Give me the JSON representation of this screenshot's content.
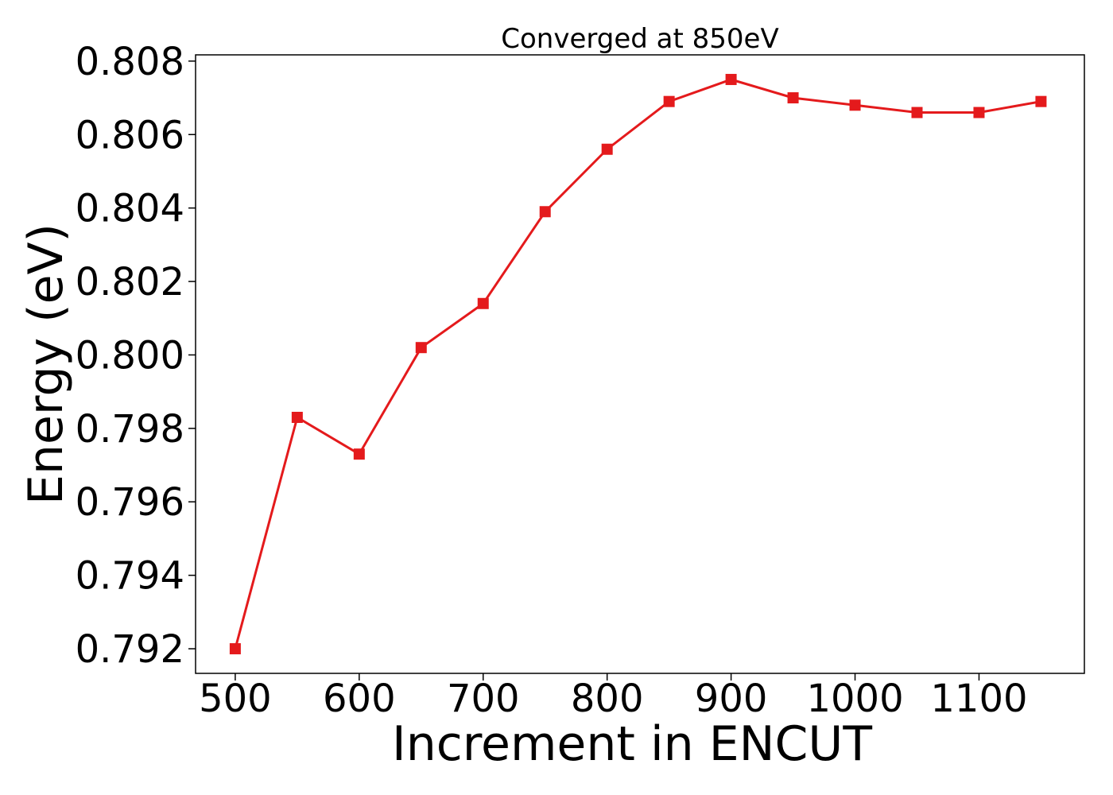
{
  "chart_data": {
    "type": "line",
    "title": "Converged at 850eV",
    "xlabel": "Increment in ENCUT",
    "ylabel": "Energy (eV)",
    "x": [
      500,
      550,
      600,
      650,
      700,
      750,
      800,
      850,
      900,
      950,
      1000,
      1050,
      1100,
      1150
    ],
    "series": [
      {
        "values": [
          0.792,
          0.7983,
          0.7973,
          0.8002,
          0.8014,
          0.8039,
          0.8056,
          0.8069,
          0.8075,
          0.807,
          0.8068,
          0.8066,
          0.8066,
          0.8069
        ],
        "color": "#e41a1c",
        "marker": "square"
      }
    ],
    "xlim": [
      468,
      1185
    ],
    "ylim": [
      0.79133,
      0.80817
    ],
    "xticks": [
      500,
      600,
      700,
      800,
      900,
      1000,
      1100
    ],
    "xtick_labels": [
      "500",
      "600",
      "700",
      "800",
      "900",
      "1000",
      "1100"
    ],
    "yticks": [
      0.792,
      0.794,
      0.796,
      0.798,
      0.8,
      0.802,
      0.804,
      0.806,
      0.808
    ],
    "ytick_labels": [
      "0.792",
      "0.794",
      "0.796",
      "0.798",
      "0.800",
      "0.802",
      "0.804",
      "0.806",
      "0.808"
    ],
    "grid": false,
    "legend": "none"
  }
}
